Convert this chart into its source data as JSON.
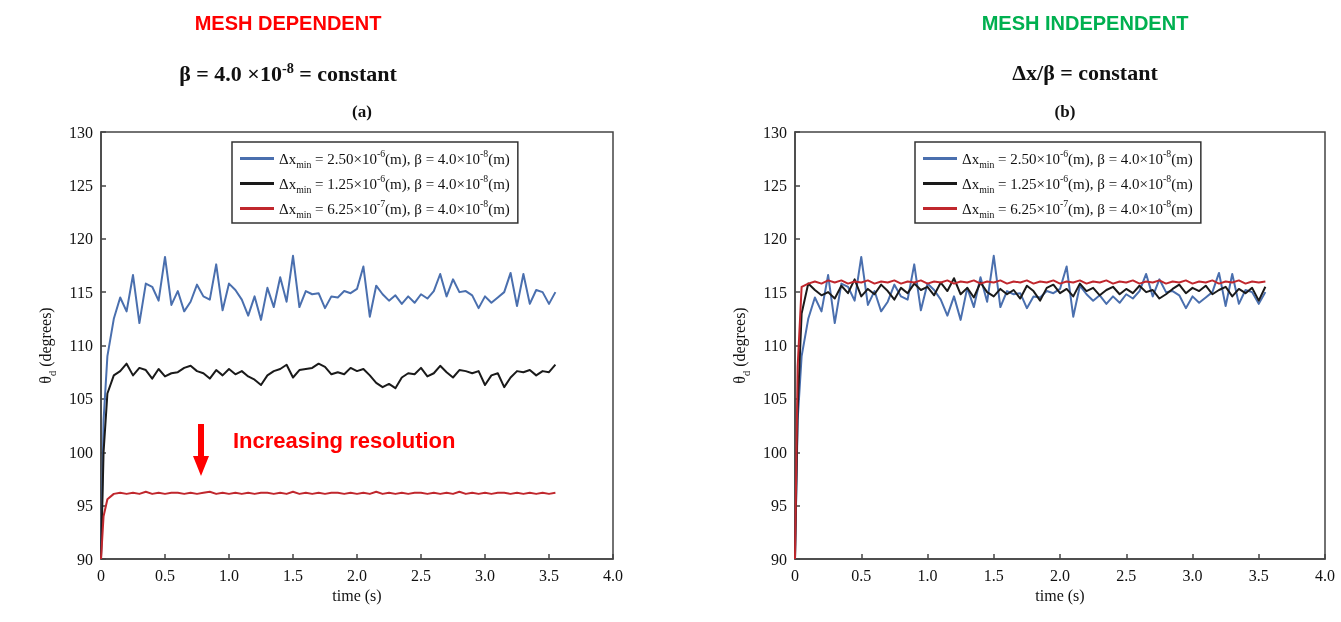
{
  "chart_data": [
    {
      "type": "line",
      "title": "MESH DEPENDENT",
      "subtitle": "β = 4.0 ×10$^{-8}$ = constant",
      "xlabel": "time (s)",
      "ylabel": "θ$_{d}$ (degrees)",
      "annotations": [
        "(a)",
        "Increasing resolution"
      ],
      "x": [
        0,
        0.02,
        0.05,
        0.1,
        0.15,
        0.2,
        0.25,
        0.3,
        0.35,
        0.4,
        0.45,
        0.5,
        0.55,
        0.6,
        0.65,
        0.7,
        0.75,
        0.8,
        0.85,
        0.9,
        0.95,
        1.0,
        1.05,
        1.1,
        1.15,
        1.2,
        1.25,
        1.3,
        1.35,
        1.4,
        1.45,
        1.5,
        1.55,
        1.6,
        1.65,
        1.7,
        1.75,
        1.8,
        1.85,
        1.9,
        1.95,
        2.0,
        2.05,
        2.1,
        2.15,
        2.2,
        2.25,
        2.3,
        2.35,
        2.4,
        2.45,
        2.5,
        2.55,
        2.6,
        2.65,
        2.7,
        2.75,
        2.8,
        2.85,
        2.9,
        2.95,
        3.0,
        3.05,
        3.1,
        3.15,
        3.2,
        3.25,
        3.3,
        3.35,
        3.4,
        3.45,
        3.5,
        3.55
      ],
      "series": [
        {
          "name": "Δx$_{min}$ = 2.50×10$^{-6}$(m), β = 4.0×10$^{-8}$(m)",
          "color": "#4a6fae",
          "values": [
            90,
            103,
            109,
            112.5,
            114.5,
            113.2,
            116.6,
            112.1,
            115.8,
            115.5,
            114.2,
            118.3,
            113.8,
            115.1,
            113.2,
            114.1,
            115.7,
            114.6,
            114.3,
            117.6,
            113.3,
            115.8,
            115.2,
            114.3,
            112.8,
            114.6,
            112.4,
            115.4,
            113.6,
            116.4,
            114.1,
            118.4,
            113.6,
            115.1,
            114.8,
            114.9,
            113.5,
            114.6,
            114.5,
            115.1,
            114.9,
            115.3,
            117.4,
            112.7,
            115.6,
            114.8,
            114.2,
            114.7,
            113.9,
            114.6,
            114,
            114.8,
            114.4,
            115.1,
            116.7,
            114.6,
            116.2,
            115,
            115.1,
            114.7,
            113.5,
            114.6,
            114,
            114.5,
            115,
            116.8,
            113.7,
            116.7,
            113.9,
            115.2,
            115,
            113.9,
            115
          ]
        },
        {
          "name": "Δx$_{min}$ = 1.25×10$^{-6}$(m), β = 4.0×10$^{-8}$(m)",
          "color": "#1a1a1a",
          "values": [
            90,
            100,
            105.5,
            107.2,
            107.6,
            108.3,
            107.2,
            107.9,
            107.7,
            106.9,
            107.8,
            107.1,
            107.4,
            107.5,
            107.9,
            108.1,
            107.6,
            107.4,
            106.9,
            107.7,
            107.2,
            107.8,
            107.3,
            107.6,
            107.1,
            106.8,
            106.3,
            107.2,
            107.6,
            107.8,
            108.2,
            107,
            107.7,
            107.8,
            107.9,
            108.3,
            108,
            107.3,
            107.5,
            107.3,
            107.9,
            107.6,
            107.8,
            107.2,
            106.5,
            106.1,
            106.4,
            106,
            107,
            107.4,
            107.3,
            107.9,
            107.1,
            107.4,
            108.1,
            107.5,
            107,
            107.7,
            107.6,
            107.4,
            107.6,
            106.3,
            107.2,
            107.4,
            106.1,
            107,
            107.6,
            107.5,
            107.7,
            107.2,
            107.6,
            107.5,
            108.2
          ]
        },
        {
          "name": "Δx$_{min}$ = 6.25×10$^{-7}$(m), β = 4.0×10$^{-8}$(m)",
          "color": "#c0272d",
          "values": [
            90,
            94,
            95.6,
            96.1,
            96.2,
            96.1,
            96.2,
            96.1,
            96.3,
            96.1,
            96.2,
            96.1,
            96.2,
            96.2,
            96.1,
            96.2,
            96.1,
            96.2,
            96.3,
            96.1,
            96.2,
            96.1,
            96.2,
            96.1,
            96.2,
            96.1,
            96.2,
            96.2,
            96.1,
            96.2,
            96.1,
            96.3,
            96.1,
            96.2,
            96.1,
            96.2,
            96.1,
            96.2,
            96.2,
            96.1,
            96.2,
            96.1,
            96.2,
            96.1,
            96.3,
            96.1,
            96.2,
            96.1,
            96.2,
            96.1,
            96.2,
            96.2,
            96.1,
            96.2,
            96.1,
            96.2,
            96.1,
            96.3,
            96.1,
            96.2,
            96.1,
            96.2,
            96.1,
            96.2,
            96.2,
            96.1,
            96.2,
            96.1,
            96.2,
            96.1,
            96.2,
            96.1,
            96.2
          ]
        }
      ],
      "xlim": [
        0,
        4
      ],
      "xticks": [
        0,
        0.5,
        {
          "value": 1,
          "label": "1.0"
        },
        1.5,
        {
          "value": 2,
          "label": "2.0"
        },
        2.5,
        {
          "value": 3,
          "label": "3.0"
        },
        3.5,
        {
          "value": 4,
          "label": "4.0"
        }
      ],
      "ylim": [
        90,
        130
      ],
      "yticks": [
        90,
        95,
        100,
        105,
        110,
        115,
        120,
        125,
        130
      ],
      "legend": "top right"
    },
    {
      "type": "line",
      "title": "MESH INDEPENDENT",
      "subtitle": "Δx/β = constant",
      "xlabel": "time (s)",
      "ylabel": "θ$_{d}$ (degrees)",
      "annotations": [
        "(b)"
      ],
      "x": [
        0,
        0.02,
        0.05,
        0.1,
        0.15,
        0.2,
        0.25,
        0.3,
        0.35,
        0.4,
        0.45,
        0.5,
        0.55,
        0.6,
        0.65,
        0.7,
        0.75,
        0.8,
        0.85,
        0.9,
        0.95,
        1.0,
        1.05,
        1.1,
        1.15,
        1.2,
        1.25,
        1.3,
        1.35,
        1.4,
        1.45,
        1.5,
        1.55,
        1.6,
        1.65,
        1.7,
        1.75,
        1.8,
        1.85,
        1.9,
        1.95,
        2.0,
        2.05,
        2.1,
        2.15,
        2.2,
        2.25,
        2.3,
        2.35,
        2.4,
        2.45,
        2.5,
        2.55,
        2.6,
        2.65,
        2.7,
        2.75,
        2.8,
        2.85,
        2.9,
        2.95,
        3.0,
        3.05,
        3.1,
        3.15,
        3.2,
        3.25,
        3.3,
        3.35,
        3.4,
        3.45,
        3.5,
        3.55
      ],
      "series": [
        {
          "name": "Δx$_{min}$ = 2.50×10$^{-6}$(m), β = 4.0×10$^{-8}$(m)",
          "color": "#4a6fae",
          "values": [
            90,
            103,
            109,
            112.5,
            114.5,
            113.2,
            116.6,
            112.1,
            115.8,
            115.5,
            114.2,
            118.3,
            113.8,
            115.1,
            113.2,
            114.1,
            115.7,
            114.6,
            114.3,
            117.6,
            113.3,
            115.8,
            115.2,
            114.3,
            112.8,
            114.6,
            112.4,
            115.4,
            113.6,
            116.4,
            114.1,
            118.4,
            113.6,
            115.1,
            114.8,
            114.9,
            113.5,
            114.6,
            114.5,
            115.1,
            114.9,
            115.3,
            117.4,
            112.7,
            115.6,
            114.8,
            114.2,
            114.7,
            113.9,
            114.6,
            114,
            114.8,
            114.4,
            115.1,
            116.7,
            114.6,
            116.2,
            115,
            115.1,
            114.7,
            113.5,
            114.6,
            114,
            114.5,
            115,
            116.8,
            113.7,
            116.7,
            113.9,
            115.2,
            115,
            113.9,
            115
          ]
        },
        {
          "name": "Δx$_{min}$ = 1.25×10$^{-6}$(m), β = 4.0×10$^{-8}$(m)",
          "color": "#1a1a1a",
          "values": [
            90,
            104,
            113,
            115.8,
            115.2,
            114.7,
            115,
            114.4,
            115.6,
            114.9,
            116.2,
            114.6,
            115.3,
            114.8,
            115.7,
            115.1,
            114.3,
            115.4,
            114.9,
            115.8,
            115.2,
            115.5,
            114.7,
            115.9,
            115.1,
            116.3,
            114.8,
            115.4,
            114.5,
            115.9,
            115,
            114.6,
            115.3,
            114.8,
            115.2,
            114.4,
            115.6,
            115.1,
            114.2,
            115.4,
            115.7,
            114.9,
            115.3,
            114.6,
            115.8,
            115.1,
            115.4,
            114.7,
            115.2,
            115.5,
            114.8,
            115.3,
            114.9,
            115.6,
            115,
            115.2,
            114.4,
            114.8,
            115.3,
            115.7,
            114.9,
            115.4,
            115.1,
            115.6,
            114.8,
            115.2,
            115.5,
            114.6,
            115.3,
            114.9,
            115.4,
            114.2,
            115.5
          ]
        },
        {
          "name": "Δx$_{min}$ = 6.25×10$^{-7}$(m), β = 4.0×10$^{-8}$(m)",
          "color": "#c0272d",
          "values": [
            90,
            108,
            115.5,
            115.8,
            116,
            115.8,
            116.1,
            115.9,
            116.1,
            115.8,
            116,
            115.9,
            116.1,
            115.8,
            116,
            115.9,
            116.1,
            115.8,
            116,
            115.9,
            116.1,
            115.8,
            116,
            115.9,
            116.1,
            115.8,
            116,
            115.9,
            116.1,
            115.8,
            116,
            115.9,
            116.1,
            115.8,
            116,
            115.9,
            116.1,
            115.8,
            116,
            115.9,
            116.1,
            115.8,
            116,
            115.9,
            116.1,
            115.8,
            116,
            115.9,
            116.1,
            115.8,
            116,
            115.9,
            116.1,
            115.8,
            116,
            115.9,
            116.1,
            115.8,
            116,
            115.9,
            116.1,
            115.8,
            116,
            115.9,
            116.1,
            115.8,
            116,
            115.9,
            116.1,
            115.8,
            116,
            115.9,
            116
          ]
        }
      ],
      "xlim": [
        0,
        4
      ],
      "xticks": [
        0,
        0.5,
        {
          "value": 1,
          "label": "1.0"
        },
        1.5,
        {
          "value": 2,
          "label": "2.0"
        },
        2.5,
        {
          "value": 3,
          "label": "3.0"
        },
        3.5,
        {
          "value": 4,
          "label": "4.0"
        }
      ],
      "ylim": [
        90,
        130
      ],
      "yticks": [
        90,
        95,
        100,
        105,
        110,
        115,
        120,
        125,
        130
      ],
      "legend": "top right"
    }
  ]
}
